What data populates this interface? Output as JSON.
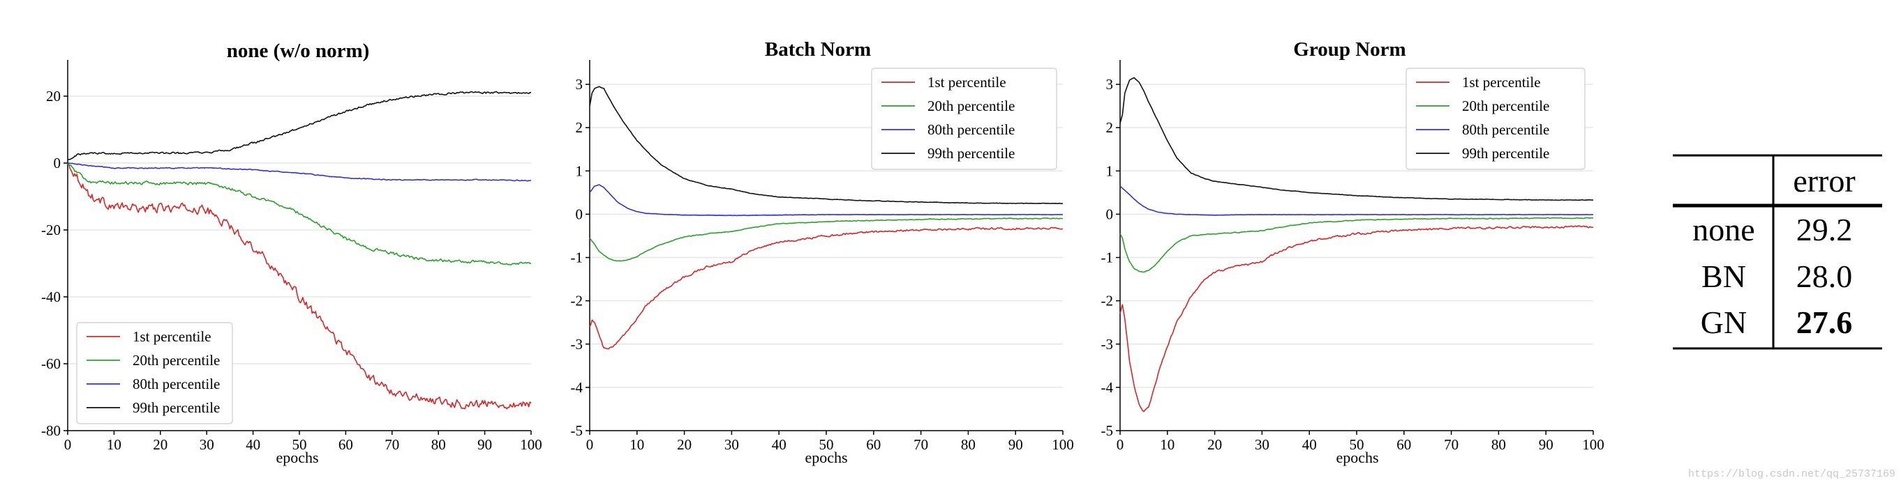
{
  "colors": {
    "p1": "#d62728",
    "p20": "#2ca02c",
    "p80": "#3232c8",
    "p99": "#111111",
    "grid": "#e6e6e6",
    "axis": "#000000"
  },
  "chart_data": [
    {
      "type": "line",
      "title": "none (w/o norm)",
      "xlabel": "epochs",
      "ylabel": "",
      "xlim": [
        0,
        100
      ],
      "ylim": [
        -80,
        30
      ],
      "xticks": [
        0,
        10,
        20,
        30,
        40,
        50,
        60,
        70,
        80,
        90,
        100
      ],
      "yticks": [
        -80,
        -60,
        -40,
        -20,
        0,
        20
      ],
      "legend": "lower-left",
      "series": [
        {
          "name": "1st percentile",
          "color_key": "p1",
          "noise": 1.1,
          "x": [
            0,
            2,
            5,
            10,
            15,
            20,
            25,
            30,
            32,
            35,
            40,
            45,
            50,
            55,
            60,
            65,
            70,
            75,
            80,
            85,
            90,
            95,
            100
          ],
          "y": [
            0,
            -4,
            -10,
            -13,
            -13.5,
            -13.5,
            -13.5,
            -14,
            -16,
            -19,
            -25,
            -32,
            -40,
            -48,
            -56,
            -64,
            -68,
            -70,
            -71,
            -72,
            -72,
            -72,
            -72
          ]
        },
        {
          "name": "20th percentile",
          "color_key": "p20",
          "noise": 0.4,
          "x": [
            0,
            2,
            5,
            10,
            20,
            30,
            35,
            40,
            45,
            50,
            55,
            60,
            65,
            70,
            75,
            80,
            85,
            90,
            95,
            100
          ],
          "y": [
            0,
            -3,
            -5.5,
            -6,
            -6,
            -6,
            -7.5,
            -10,
            -12,
            -15,
            -19,
            -22.5,
            -25.5,
            -27,
            -28.5,
            -29,
            -29.5,
            -29.5,
            -30,
            -30
          ]
        },
        {
          "name": "80th percentile",
          "color_key": "p80",
          "noise": 0.12,
          "x": [
            0,
            3,
            6,
            10,
            20,
            30,
            40,
            50,
            60,
            70,
            80,
            90,
            100
          ],
          "y": [
            0,
            -0.5,
            -1,
            -1.5,
            -1.5,
            -1.5,
            -2,
            -3,
            -4.5,
            -5,
            -5,
            -5,
            -5.2
          ]
        },
        {
          "name": "99th percentile",
          "color_key": "p99",
          "noise": 0.25,
          "x": [
            0,
            2,
            5,
            10,
            20,
            30,
            35,
            40,
            45,
            50,
            55,
            60,
            65,
            70,
            75,
            80,
            85,
            90,
            95,
            100
          ],
          "y": [
            1,
            2.5,
            3,
            3,
            3,
            3,
            4,
            6,
            8,
            10.5,
            13,
            15.5,
            17.5,
            19,
            20,
            20.5,
            21,
            21,
            21,
            21
          ]
        }
      ]
    },
    {
      "type": "line",
      "title": "Batch Norm",
      "xlabel": "epochs",
      "ylabel": "",
      "xlim": [
        0,
        100
      ],
      "ylim": [
        -5,
        3.5
      ],
      "xticks": [
        0,
        10,
        20,
        30,
        40,
        50,
        60,
        70,
        80,
        90,
        100
      ],
      "yticks": [
        -5,
        -4,
        -3,
        -2,
        -1,
        0,
        1,
        2,
        3
      ],
      "legend": "top-right",
      "series": [
        {
          "name": "1st percentile",
          "color_key": "p1",
          "noise": 0.02,
          "x": [
            0,
            0.5,
            1,
            2,
            3,
            4,
            5,
            6,
            8,
            10,
            12,
            15,
            20,
            25,
            30,
            32,
            35,
            40,
            50,
            60,
            70,
            80,
            90,
            100
          ],
          "y": [
            -2.6,
            -2.45,
            -2.5,
            -2.8,
            -3.1,
            -3.12,
            -3.05,
            -2.95,
            -2.7,
            -2.4,
            -2.1,
            -1.8,
            -1.45,
            -1.2,
            -1.1,
            -0.95,
            -0.8,
            -0.65,
            -0.5,
            -0.4,
            -0.36,
            -0.34,
            -0.33,
            -0.32
          ]
        },
        {
          "name": "20th percentile",
          "color_key": "p20",
          "noise": 0.008,
          "x": [
            0,
            1,
            2,
            3,
            4,
            5,
            6,
            7,
            8,
            10,
            12,
            15,
            20,
            25,
            30,
            35,
            40,
            50,
            60,
            70,
            80,
            90,
            100
          ],
          "y": [
            -0.55,
            -0.7,
            -0.85,
            -0.95,
            -1.02,
            -1.06,
            -1.08,
            -1.08,
            -1.06,
            -0.98,
            -0.85,
            -0.7,
            -0.52,
            -0.45,
            -0.4,
            -0.3,
            -0.22,
            -0.17,
            -0.14,
            -0.12,
            -0.11,
            -0.1,
            -0.1
          ]
        },
        {
          "name": "80th percentile",
          "color_key": "p80",
          "noise": 0.003,
          "x": [
            0,
            1,
            2,
            3,
            4,
            5,
            6,
            8,
            10,
            12,
            15,
            20,
            30,
            40,
            50,
            60,
            80,
            100
          ],
          "y": [
            0.5,
            0.65,
            0.68,
            0.62,
            0.5,
            0.38,
            0.27,
            0.14,
            0.06,
            0.02,
            0,
            -0.02,
            -0.03,
            -0.02,
            -0.01,
            -0.01,
            -0.01,
            -0.01
          ]
        },
        {
          "name": "99th percentile",
          "color_key": "p99",
          "noise": 0.005,
          "x": [
            0,
            0.5,
            1,
            2,
            3,
            4,
            5,
            7,
            10,
            13,
            15,
            18,
            20,
            25,
            30,
            35,
            40,
            50,
            60,
            70,
            80,
            90,
            100
          ],
          "y": [
            2.5,
            2.8,
            2.9,
            2.95,
            2.9,
            2.7,
            2.5,
            2.15,
            1.7,
            1.35,
            1.15,
            0.95,
            0.82,
            0.66,
            0.58,
            0.46,
            0.4,
            0.35,
            0.31,
            0.28,
            0.26,
            0.25,
            0.25
          ]
        }
      ]
    },
    {
      "type": "line",
      "title": "Group Norm",
      "xlabel": "epochs",
      "ylabel": "",
      "xlim": [
        0,
        100
      ],
      "ylim": [
        -5,
        3.5
      ],
      "xticks": [
        0,
        10,
        20,
        30,
        40,
        50,
        60,
        70,
        80,
        90,
        100
      ],
      "yticks": [
        -5,
        -4,
        -3,
        -2,
        -1,
        0,
        1,
        2,
        3
      ],
      "legend": "top-right",
      "series": [
        {
          "name": "1st percentile",
          "color_key": "p1",
          "noise": 0.02,
          "x": [
            0,
            0.5,
            1,
            1.5,
            2,
            3,
            4,
            5,
            6,
            7,
            8,
            10,
            12,
            15,
            18,
            20,
            25,
            30,
            32,
            35,
            40,
            50,
            60,
            70,
            80,
            90,
            100
          ],
          "y": [
            -2.3,
            -2.1,
            -2.4,
            -2.9,
            -3.4,
            -4.0,
            -4.4,
            -4.55,
            -4.45,
            -4.1,
            -3.7,
            -3.05,
            -2.5,
            -1.9,
            -1.5,
            -1.35,
            -1.2,
            -1.1,
            -0.95,
            -0.8,
            -0.62,
            -0.45,
            -0.37,
            -0.33,
            -0.31,
            -0.3,
            -0.29
          ]
        },
        {
          "name": "20th percentile",
          "color_key": "p20",
          "noise": 0.008,
          "x": [
            0,
            0.5,
            1,
            2,
            3,
            4,
            5,
            6,
            7,
            8,
            10,
            12,
            15,
            20,
            25,
            30,
            35,
            40,
            50,
            60,
            70,
            80,
            90,
            100
          ],
          "y": [
            -0.45,
            -0.55,
            -0.8,
            -1.1,
            -1.26,
            -1.32,
            -1.33,
            -1.3,
            -1.22,
            -1.1,
            -0.85,
            -0.65,
            -0.5,
            -0.45,
            -0.42,
            -0.38,
            -0.28,
            -0.2,
            -0.14,
            -0.11,
            -0.1,
            -0.1,
            -0.09,
            -0.09
          ]
        },
        {
          "name": "80th percentile",
          "color_key": "p80",
          "noise": 0.003,
          "x": [
            0,
            1,
            2,
            3,
            4,
            5,
            6,
            8,
            10,
            12,
            15,
            20,
            30,
            40,
            50,
            60,
            80,
            100
          ],
          "y": [
            0.65,
            0.55,
            0.45,
            0.35,
            0.25,
            0.18,
            0.12,
            0.05,
            0.02,
            0,
            -0.01,
            -0.02,
            -0.01,
            -0.01,
            -0.01,
            -0.01,
            -0.01,
            -0.01
          ]
        },
        {
          "name": "99th percentile",
          "color_key": "p99",
          "noise": 0.005,
          "x": [
            0,
            0.5,
            1,
            2,
            3,
            4,
            5,
            6,
            8,
            10,
            12,
            15,
            18,
            20,
            25,
            30,
            35,
            40,
            50,
            60,
            70,
            80,
            90,
            100
          ],
          "y": [
            2.1,
            2.3,
            2.8,
            3.1,
            3.15,
            3.05,
            2.85,
            2.6,
            2.15,
            1.7,
            1.3,
            0.95,
            0.82,
            0.76,
            0.69,
            0.62,
            0.55,
            0.5,
            0.43,
            0.38,
            0.35,
            0.34,
            0.33,
            0.33
          ]
        }
      ]
    },
    {
      "type": "table",
      "columns": [
        "",
        "error"
      ],
      "rows": [
        {
          "label": "none",
          "value": "29.2",
          "bold": false
        },
        {
          "label": "BN",
          "value": "28.0",
          "bold": false
        },
        {
          "label": "GN",
          "value": "27.6",
          "bold": true
        }
      ]
    }
  ],
  "watermark": "https://blog.csdn.net/qq_25737169"
}
